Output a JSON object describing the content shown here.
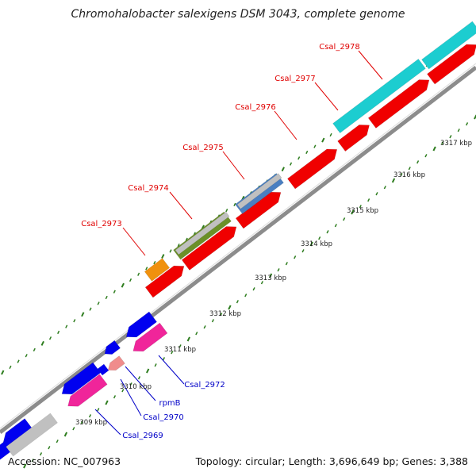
{
  "title": "Chromohalobacter salexigens DSM 3043, complete genome",
  "footer": {
    "accession_label": "Accession: NC_007963",
    "summary_label": "Topology: circular; Length: 3,696,649 bp; Genes: 3,388"
  },
  "colors": {
    "backbone": "#8c8c8c",
    "ticks": "#2e7d1f",
    "label_red": "#e00000",
    "label_blue": "#0000c8",
    "gene_red": "#f00000",
    "gene_blue": "#0000f0",
    "gene_pink": "#f0259a",
    "gene_salmon": "#f08c8c",
    "gene_cyan": "#1ccdd0",
    "gene_gray": "#c0c0c0",
    "gene_orange": "#f0910e",
    "gene_olive": "#6b9028",
    "gene_steel": "#4a7fc1"
  },
  "ticks": [
    {
      "label": "3309 kbp"
    },
    {
      "label": "3310 kbp"
    },
    {
      "label": "3311 kbp"
    },
    {
      "label": "3312 kbp"
    },
    {
      "label": "3313 kbp"
    },
    {
      "label": "3314 kbp"
    },
    {
      "label": "3315 kbp"
    },
    {
      "label": "3316 kbp"
    },
    {
      "label": "3317 kbp"
    }
  ],
  "gene_labels_top": [
    {
      "label": "Csal_2973"
    },
    {
      "label": "Csal_2974"
    },
    {
      "label": "Csal_2975"
    },
    {
      "label": "Csal_2976"
    },
    {
      "label": "Csal_2977"
    },
    {
      "label": "Csal_2978"
    }
  ],
  "gene_labels_bottom": [
    {
      "label": "Csal_2969"
    },
    {
      "label": "Csal_2970"
    },
    {
      "label": "rpmB"
    },
    {
      "label": "Csal_2972"
    }
  ]
}
